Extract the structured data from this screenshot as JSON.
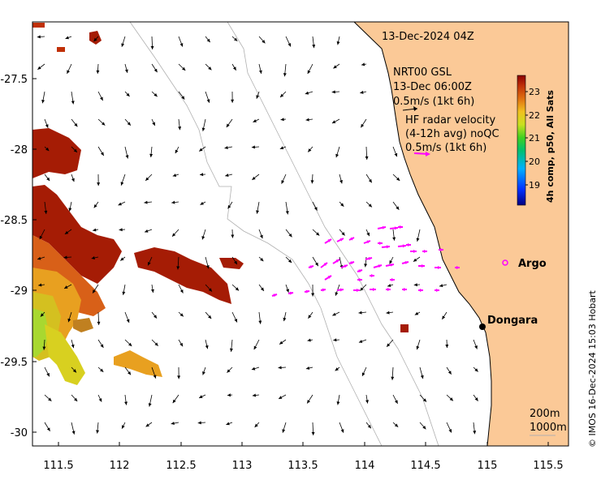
{
  "map": {
    "timestamp": "13-Dec-2024 04Z",
    "model": {
      "line1": "NRT00 GSL",
      "line2": "13-Dec 06:00Z",
      "line3": "0.5m/s (1kt 6h)"
    },
    "radar": {
      "line1": "HF radar velocity",
      "line2": "(4-12h avg) noQC",
      "line3": "0.5m/s (1kt 6h)"
    },
    "colorbar": {
      "label": "4h comp, p50, All Sats",
      "ticks": [
        "23",
        "22",
        "21",
        "20",
        "19"
      ]
    },
    "places": {
      "argo": "Argo",
      "dongara": "Dongara"
    },
    "depth": {
      "contour1": "200m",
      "contour2": "1000m"
    },
    "x_ticks": [
      "111.5",
      "112",
      "112.5",
      "113",
      "113.5",
      "114",
      "114.5",
      "115",
      "115.5"
    ],
    "y_ticks": [
      "-27.5",
      "-28",
      "-28.5",
      "-29",
      "-29.5",
      "-30"
    ],
    "credit": "© IMOS 16-Dec-2024 15:03 Hobart",
    "colors": {
      "land": "#fbc997",
      "radar": "#ff00ff",
      "argo": "#ff00ff",
      "sst_warm": "#a51c05",
      "sst_mid": "#e8a020",
      "sst_cool": "#c8e020"
    }
  }
}
